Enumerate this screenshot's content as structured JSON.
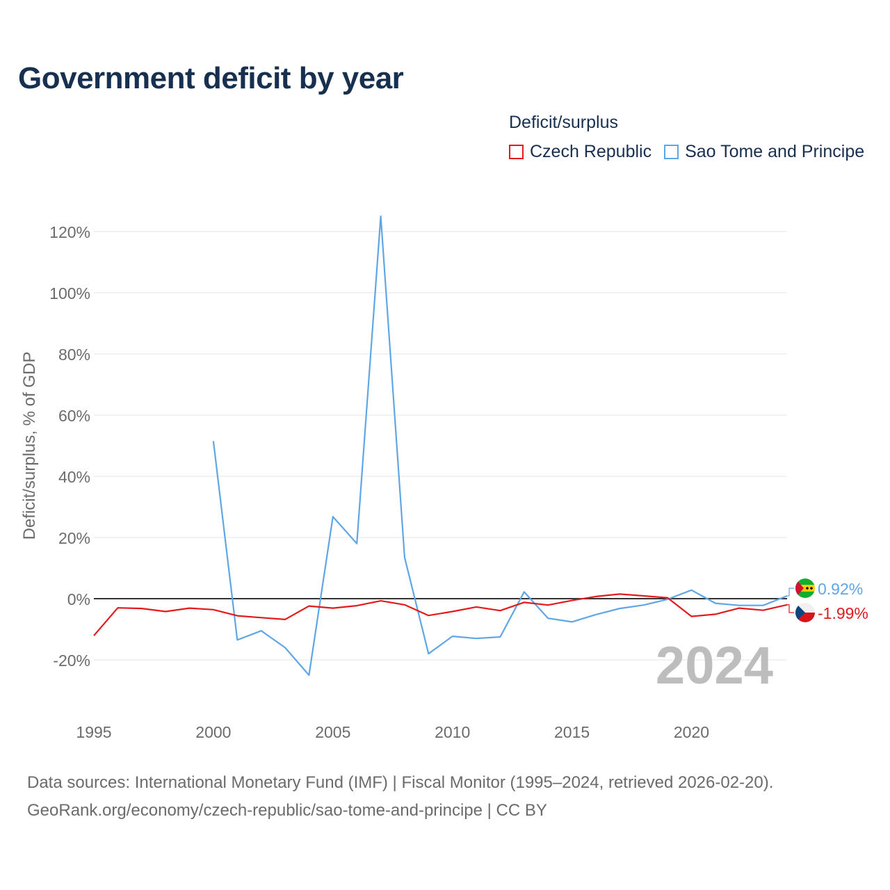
{
  "title": "Government deficit by year",
  "legend": {
    "title": "Deficit/surplus",
    "items": [
      {
        "label": "Czech Republic",
        "color": "#e31a1c"
      },
      {
        "label": "Sao Tome and Principe",
        "color": "#5fa6e6"
      }
    ]
  },
  "chart_data": {
    "type": "line",
    "title": "Government deficit by year",
    "xlabel": "",
    "ylabel": "Deficit/surplus, % of GDP",
    "xlim": [
      1995,
      2024
    ],
    "ylim": [
      -30,
      130
    ],
    "x_ticks": [
      1995,
      2000,
      2005,
      2010,
      2015,
      2020
    ],
    "y_ticks": [
      -20,
      0,
      20,
      40,
      60,
      80,
      100,
      120
    ],
    "y_tick_labels": [
      "-20%",
      "0%",
      "20%",
      "40%",
      "60%",
      "80%",
      "100%",
      "120%"
    ],
    "current_year_label": "2024",
    "series": [
      {
        "name": "Czech Republic",
        "color": "#e31a1c",
        "x": [
          1995,
          1996,
          1997,
          1998,
          1999,
          2000,
          2001,
          2002,
          2003,
          2004,
          2005,
          2006,
          2007,
          2008,
          2009,
          2010,
          2011,
          2012,
          2013,
          2014,
          2015,
          2016,
          2017,
          2018,
          2019,
          2020,
          2021,
          2022,
          2023,
          2024
        ],
        "values": [
          -12.1,
          -3.0,
          -3.2,
          -4.2,
          -3.1,
          -3.6,
          -5.6,
          -6.2,
          -6.8,
          -2.4,
          -3.1,
          -2.3,
          -0.7,
          -2.0,
          -5.5,
          -4.2,
          -2.7,
          -3.9,
          -1.2,
          -2.1,
          -0.6,
          0.7,
          1.5,
          0.9,
          0.3,
          -5.8,
          -5.1,
          -3.1,
          -3.8,
          -1.99
        ],
        "end_label": "-1.99%"
      },
      {
        "name": "Sao Tome and Principe",
        "color": "#5fa6e6",
        "x": [
          2000,
          2001,
          2002,
          2003,
          2004,
          2005,
          2006,
          2007,
          2008,
          2009,
          2010,
          2011,
          2012,
          2013,
          2014,
          2015,
          2016,
          2017,
          2018,
          2019,
          2020,
          2021,
          2022,
          2023,
          2024
        ],
        "values": [
          51.5,
          -13.5,
          -10.5,
          -16.0,
          -25.0,
          26.8,
          18.0,
          125.0,
          13.5,
          -18.0,
          -12.3,
          -13.0,
          -12.5,
          2.2,
          -6.4,
          -7.6,
          -5.2,
          -3.2,
          -2.1,
          -0.2,
          2.8,
          -1.5,
          -2.2,
          -2.2,
          0.92
        ],
        "end_label": "0.92%"
      }
    ]
  },
  "footer": {
    "line1": "Data sources: International Monetary Fund (IMF) | Fiscal Monitor (1995–2024, retrieved 2026-02-20).",
    "line2": "GeoRank.org/economy/czech-republic/sao-tome-and-principe | CC BY"
  }
}
